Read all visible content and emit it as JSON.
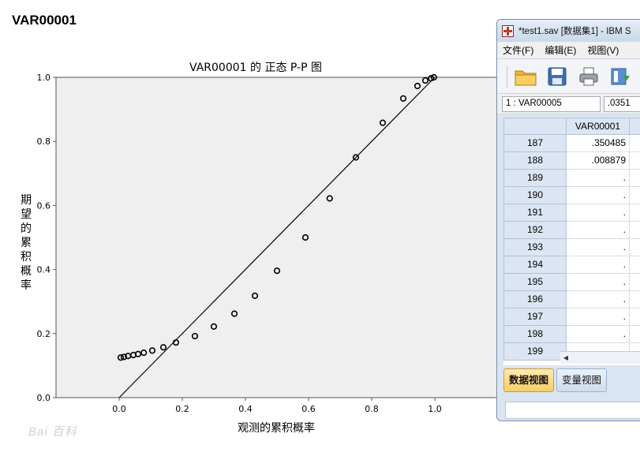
{
  "page": {
    "heading": "VAR00001"
  },
  "chart_data": {
    "type": "scatter",
    "title": "VAR00001 的 正态 P-P 图",
    "xlabel": "观测的累积概率",
    "ylabel": "期望的累积概率",
    "xlim": [
      -0.2,
      1.2
    ],
    "ylim": [
      0,
      1
    ],
    "x_ticks": [
      "0.0",
      "0.2",
      "0.4",
      "0.6",
      "0.8",
      "1.0"
    ],
    "y_ticks": [
      "0.0",
      "0.2",
      "0.4",
      "0.6",
      "0.8",
      "1.0"
    ],
    "grid": false,
    "reference_line": {
      "from": [
        0,
        0
      ],
      "to": [
        1,
        1
      ]
    },
    "points": [
      [
        0.005,
        0.125
      ],
      [
        0.015,
        0.127
      ],
      [
        0.028,
        0.13
      ],
      [
        0.045,
        0.133
      ],
      [
        0.06,
        0.136
      ],
      [
        0.078,
        0.14
      ],
      [
        0.105,
        0.147
      ],
      [
        0.14,
        0.157
      ],
      [
        0.18,
        0.172
      ],
      [
        0.24,
        0.192
      ],
      [
        0.3,
        0.222
      ],
      [
        0.365,
        0.262
      ],
      [
        0.43,
        0.318
      ],
      [
        0.5,
        0.396
      ],
      [
        0.59,
        0.5
      ],
      [
        0.667,
        0.622
      ],
      [
        0.75,
        0.75
      ],
      [
        0.835,
        0.858
      ],
      [
        0.9,
        0.934
      ],
      [
        0.945,
        0.973
      ],
      [
        0.97,
        0.99
      ],
      [
        0.988,
        0.997
      ],
      [
        0.997,
        1.0
      ]
    ]
  },
  "spss": {
    "title": "*test1.sav [数据集1] - IBM S",
    "menu": [
      "文件(F)",
      "编辑(E)",
      "视图(V)"
    ],
    "toolbar_icons": [
      "open-folder-icon",
      "save-disk-icon",
      "print-icon",
      "import-data-icon"
    ],
    "cell_ref": "1 : VAR00005",
    "cell_value": ".0351",
    "column_header": "VAR00001",
    "rows": [
      {
        "id": "187",
        "value": ".350485"
      },
      {
        "id": "188",
        "value": ".008879"
      },
      {
        "id": "189",
        "value": "."
      },
      {
        "id": "190",
        "value": "."
      },
      {
        "id": "191",
        "value": "."
      },
      {
        "id": "192",
        "value": "."
      },
      {
        "id": "193",
        "value": "."
      },
      {
        "id": "194",
        "value": "."
      },
      {
        "id": "195",
        "value": "."
      },
      {
        "id": "196",
        "value": "."
      },
      {
        "id": "197",
        "value": "."
      },
      {
        "id": "198",
        "value": "."
      },
      {
        "id": "199",
        "value": ""
      }
    ],
    "tabs": [
      "数据视图",
      "变量视图"
    ],
    "active_tab": "数据视图"
  },
  "watermark": {
    "text": "Bai 百科"
  },
  "colors": {
    "plot_bg": "#efefef",
    "window_frame": "#d9e5f3",
    "active_tab": "#f7cd66",
    "header_cell": "#dbe5f3"
  }
}
